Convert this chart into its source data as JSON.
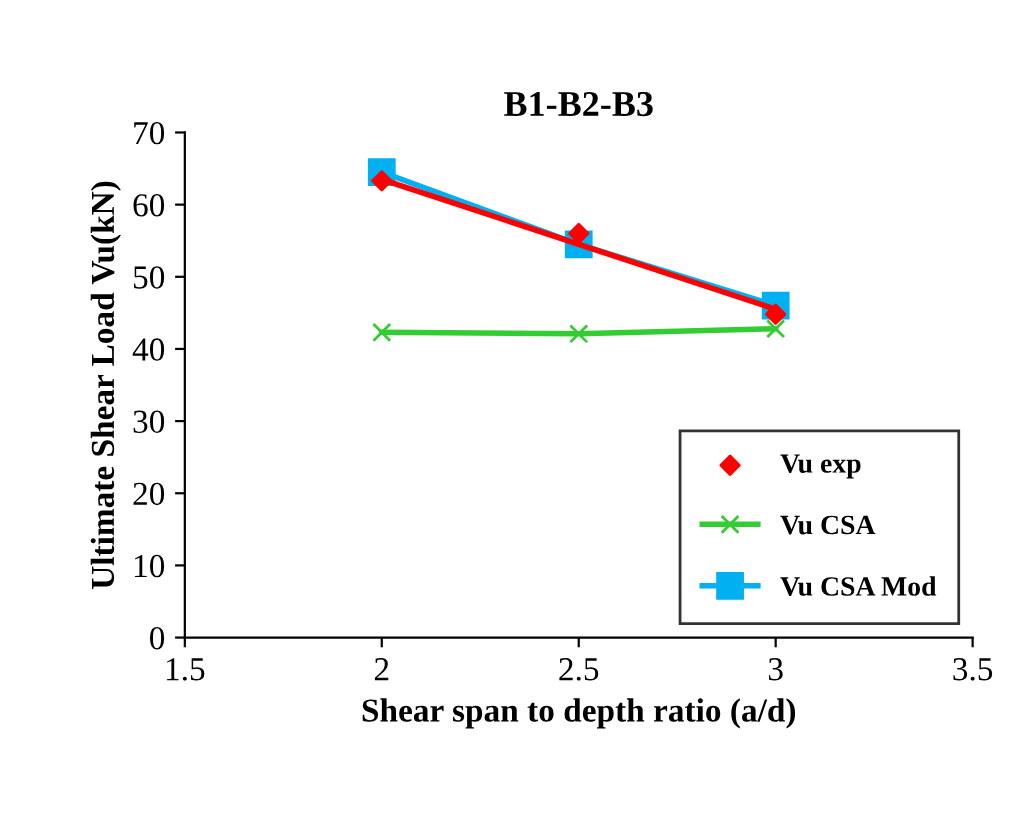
{
  "chart_data": {
    "type": "line",
    "title": "B1-B2-B3",
    "xlabel": "Shear span to depth ratio (a/d)",
    "ylabel": "Ultimate Shear Load Vu(kN)",
    "x": [
      2,
      2.5,
      3
    ],
    "series": [
      {
        "name": "Vu exp",
        "type": "scatter",
        "color": "#ff0000",
        "marker": "diamond",
        "values": [
          63.3,
          56.0,
          44.8
        ]
      },
      {
        "x": [
          2,
          3
        ],
        "color": "#ff0000",
        "marker": "none",
        "values": [
          63.5,
          45.5
        ]
      },
      {
        "name": "Vu CSA",
        "color": "#33cc33",
        "marker": "cross",
        "values": [
          42.3,
          42.1,
          42.8
        ]
      },
      {
        "name": "Vu CSA Mod",
        "color": "#00b0f0",
        "marker": "square",
        "values": [
          64.5,
          54.5,
          46.0
        ]
      }
    ],
    "xlim": [
      1.5,
      3.5
    ],
    "xticks": [
      1.5,
      2,
      2.5,
      3,
      3.5
    ],
    "ylim": [
      0,
      70
    ],
    "yticks": [
      0,
      10,
      20,
      30,
      40,
      50,
      60,
      70
    ],
    "grid": false,
    "legend": "bottom right"
  }
}
